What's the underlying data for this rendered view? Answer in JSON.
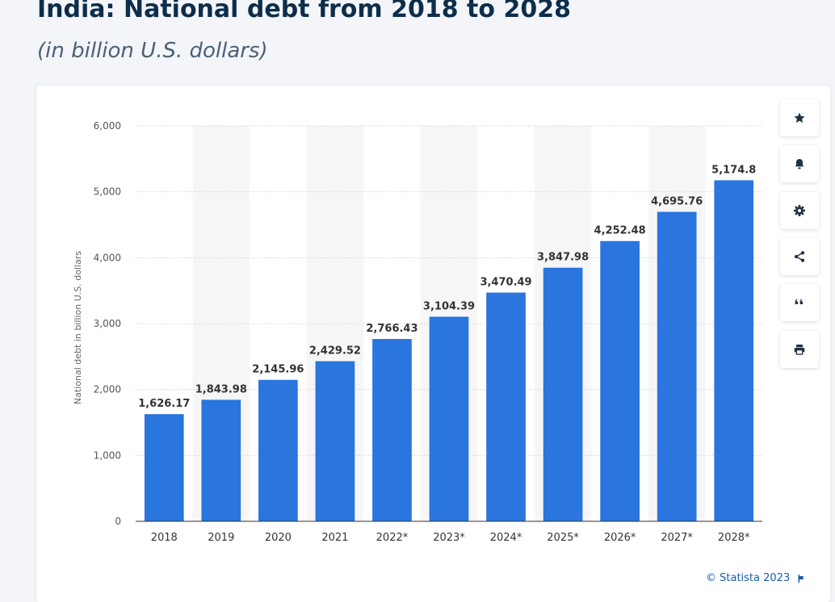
{
  "header": {
    "title": "India: National debt from 2018 to 2028",
    "subtitle": "(in billion U.S. dollars)"
  },
  "toolbar": {
    "buttons": [
      {
        "icon": "star-icon"
      },
      {
        "icon": "bell-icon"
      },
      {
        "icon": "gear-icon"
      },
      {
        "icon": "share-icon"
      },
      {
        "icon": "quote-icon"
      },
      {
        "icon": "print-icon"
      }
    ]
  },
  "footer": {
    "credit": "© Statista 2023"
  },
  "colors": {
    "bar": "#2a75de",
    "band": "#f6f6f6",
    "grid": "#c8c8c8",
    "axis": "#333333",
    "icon": "#1d3247"
  },
  "chart_data": {
    "type": "bar",
    "categories": [
      "2018",
      "2019",
      "2020",
      "2021",
      "2022*",
      "2023*",
      "2024*",
      "2025*",
      "2026*",
      "2027*",
      "2028*"
    ],
    "values": [
      1626.17,
      1843.98,
      2145.96,
      2429.52,
      2766.43,
      3104.39,
      3470.49,
      3847.98,
      4252.48,
      4695.76,
      5174.8
    ],
    "value_labels": [
      "1,626.17",
      "1,843.98",
      "2,145.96",
      "2,429.52",
      "2,766.43",
      "3,104.39",
      "3,470.49",
      "3,847.98",
      "4,252.48",
      "4,695.76",
      "5,174.8"
    ],
    "ylabel": "National debt in billion U.S. dollars",
    "xlabel": "",
    "ylim": [
      0,
      6000
    ],
    "yticks": [
      0,
      1000,
      2000,
      3000,
      4000,
      5000,
      6000
    ],
    "ytick_labels": [
      "0",
      "1,000",
      "2,000",
      "3,000",
      "4,000",
      "5,000",
      "6,000"
    ],
    "grid": true,
    "legend": "none"
  }
}
